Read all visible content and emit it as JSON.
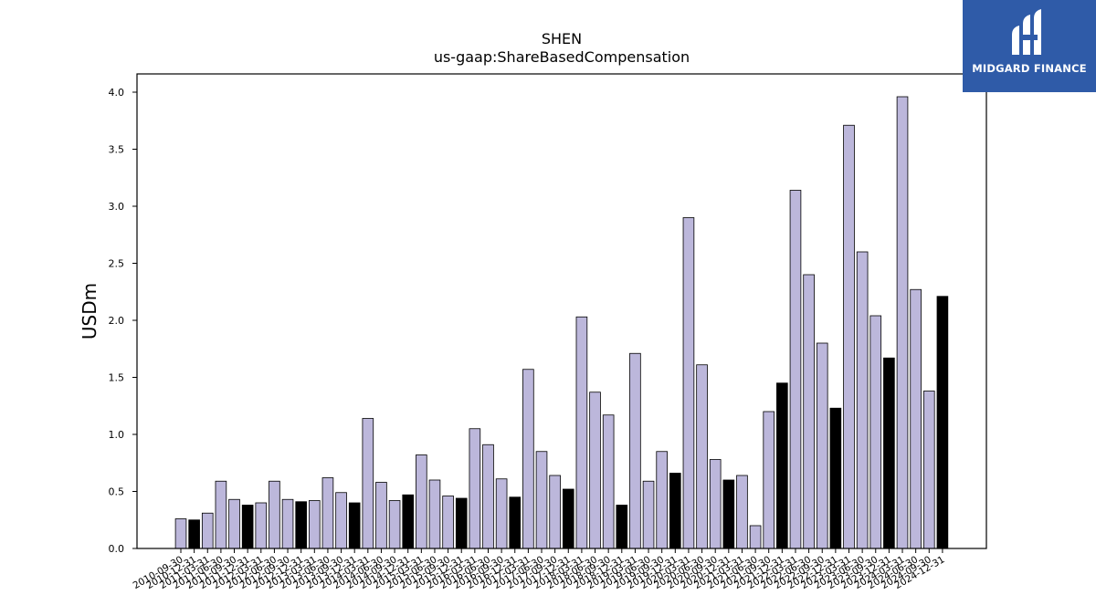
{
  "chart_data": {
    "type": "bar",
    "title": "SHEN",
    "subtitle": "us-gaap:ShareBasedCompensation",
    "xlabel": "",
    "ylabel": "USDm",
    "ylim": [
      0,
      4.16
    ],
    "yticks": [
      "0.0",
      "0.5",
      "1.0",
      "1.5",
      "2.0",
      "2.5",
      "3.0",
      "3.5",
      "4.0"
    ],
    "grid": false,
    "colors": {
      "quarter": "#bcb7db",
      "annual": "#000000",
      "edge": "#000000"
    },
    "categories": [
      "2010-09-30",
      "2010-12-31",
      "2011-03-31",
      "2011-06-30",
      "2011-09-30",
      "2011-12-31",
      "2012-03-31",
      "2012-06-30",
      "2012-09-30",
      "2012-12-31",
      "2013-03-31",
      "2013-06-30",
      "2013-09-30",
      "2013-12-31",
      "2014-03-31",
      "2014-06-30",
      "2014-09-30",
      "2014-12-31",
      "2015-03-31",
      "2015-06-30",
      "2015-09-30",
      "2015-12-31",
      "2016-03-31",
      "2016-06-30",
      "2016-09-30",
      "2016-12-31",
      "2017-03-31",
      "2017-06-30",
      "2017-09-30",
      "2017-12-31",
      "2018-03-31",
      "2018-06-30",
      "2018-09-30",
      "2018-12-31",
      "2019-03-31",
      "2019-06-30",
      "2019-09-30",
      "2019-12-31",
      "2020-03-31",
      "2020-06-30",
      "2020-09-30",
      "2020-12-31",
      "2021-03-31",
      "2021-06-30",
      "2021-09-30",
      "2021-12-31",
      "2022-03-31",
      "2022-06-30",
      "2022-09-30",
      "2022-12-31",
      "2023-03-31",
      "2023-06-30",
      "2023-09-30",
      "2023-12-31",
      "2024-03-31",
      "2024-06-30",
      "2024-09-30",
      "2024-12-31"
    ],
    "values": [
      0.26,
      0.25,
      0.31,
      0.59,
      0.43,
      0.38,
      0.4,
      0.59,
      0.43,
      0.41,
      0.42,
      0.62,
      0.49,
      0.4,
      1.14,
      0.58,
      0.42,
      0.47,
      0.82,
      0.6,
      0.46,
      0.44,
      1.05,
      0.91,
      0.61,
      0.45,
      1.57,
      0.85,
      0.64,
      0.52,
      2.03,
      1.37,
      1.17,
      0.38,
      1.71,
      0.59,
      0.85,
      0.66,
      2.9,
      1.61,
      0.78,
      0.6,
      0.64,
      0.2,
      1.2,
      1.45,
      3.14,
      2.4,
      1.8,
      1.23,
      3.71,
      2.6,
      2.04,
      1.67,
      3.96,
      2.27,
      1.38,
      2.21
    ],
    "annual": [
      false,
      true,
      false,
      false,
      false,
      true,
      false,
      false,
      false,
      true,
      false,
      false,
      false,
      true,
      false,
      false,
      false,
      true,
      false,
      false,
      false,
      true,
      false,
      false,
      false,
      true,
      false,
      false,
      false,
      true,
      false,
      false,
      false,
      true,
      false,
      false,
      false,
      true,
      false,
      false,
      false,
      true,
      false,
      false,
      false,
      true,
      false,
      false,
      false,
      true,
      false,
      false,
      false,
      true,
      false,
      false,
      false,
      true
    ]
  },
  "logo": {
    "text": "MIDGARD FINANCE"
  }
}
